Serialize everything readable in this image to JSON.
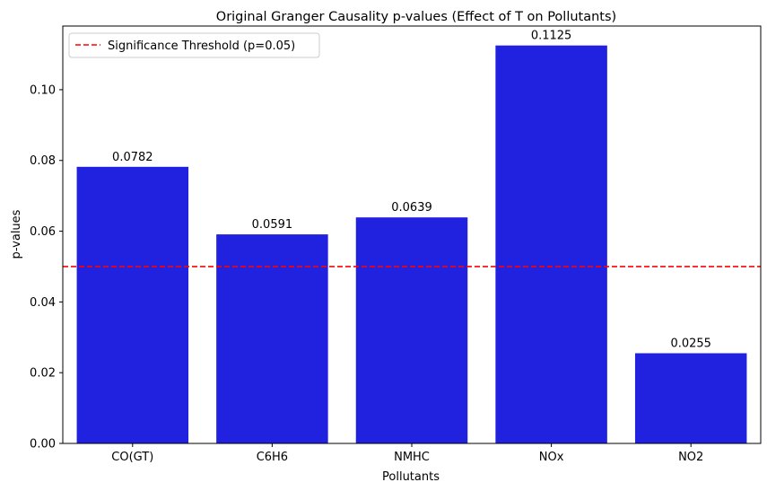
{
  "chart_data": {
    "type": "bar",
    "title": "Original Granger Causality p-values (Effect of T on Pollutants)",
    "xlabel": "Pollutants",
    "ylabel": "p-values",
    "categories": [
      "CO(GT)",
      "C6H6",
      "NMHC",
      "NOx",
      "NO2"
    ],
    "values": [
      0.0782,
      0.0591,
      0.0639,
      0.1125,
      0.0255
    ],
    "data_labels": [
      "0.0782",
      "0.0591",
      "0.0639",
      "0.1125",
      "0.0255"
    ],
    "ylim": [
      0,
      0.118
    ],
    "yticks": [
      0.0,
      0.02,
      0.04,
      0.06,
      0.08,
      0.1
    ],
    "ytick_labels": [
      "0.00",
      "0.02",
      "0.04",
      "0.06",
      "0.08",
      "0.10"
    ],
    "bar_color": "#2121e0",
    "threshold": {
      "value": 0.05,
      "label": "Significance Threshold (p=0.05)",
      "color": "#ff0000",
      "style": "dashed"
    },
    "legend_position": "top-left",
    "grid": false
  }
}
